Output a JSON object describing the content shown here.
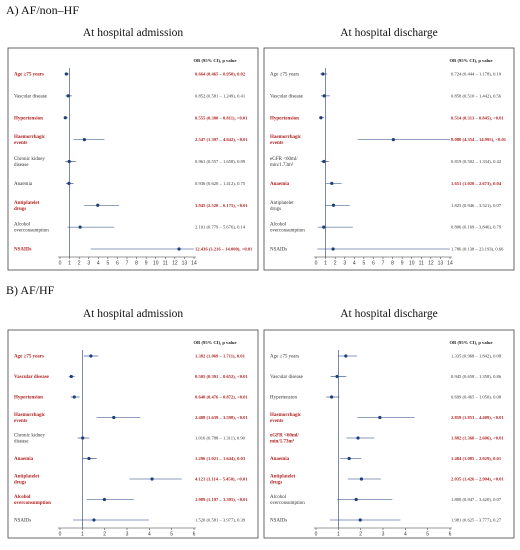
{
  "sections": [
    {
      "title": "A) AF/non–HF",
      "panels": [
        {
          "title": "At hospital admission",
          "header": "OR (95% CI), p value",
          "xticks": [
            "0",
            "1",
            "2",
            "3",
            "4",
            "5",
            "6",
            "7",
            "8",
            "9",
            "10",
            "11",
            "12",
            "13",
            "14"
          ],
          "xlim": [
            0,
            14
          ],
          "rows": [
            {
              "label": [
                "Age ≥75 years"
              ],
              "or_text": "0.664 (0.465 – 0.950), 0.02",
              "or": 0.664,
              "lo": 0.465,
              "hi": 0.95,
              "sig": true
            },
            {
              "label": [
                "Vascular disease"
              ],
              "or_text": "0.852 (0.581 – 1.249), 0.41",
              "or": 0.852,
              "lo": 0.581,
              "hi": 1.249,
              "sig": false
            },
            {
              "label": [
                "Hypertension"
              ],
              "or_text": "0.555 (0.380 – 0.811), <0.01",
              "or": 0.555,
              "lo": 0.38,
              "hi": 0.811,
              "sig": true
            },
            {
              "label": [
                "Haemorrhagic",
                "events"
              ],
              "or_text": "2.547 (1.397 – 4.642), <0.01",
              "or": 2.547,
              "lo": 1.397,
              "hi": 4.642,
              "sig": true
            },
            {
              "label": [
                "Chronic kidney",
                "disease"
              ],
              "or_text": "0.961 (0.557 – 1.658), 0.89",
              "or": 0.961,
              "lo": 0.557,
              "hi": 1.658,
              "sig": false
            },
            {
              "label": [
                "Anaemia"
              ],
              "or_text": "0.936 (0.620 – 1.412), 0.75",
              "or": 0.936,
              "lo": 0.62,
              "hi": 1.412,
              "sig": false
            },
            {
              "label": [
                "Antiplatelet",
                "drugs"
              ],
              "or_text": "3.945 (2.520 – 6.175), <0.01",
              "or": 3.945,
              "lo": 2.52,
              "hi": 6.175,
              "sig": true
            },
            {
              "label": [
                "Alcohol",
                "overconsumption"
              ],
              "or_text": "2.101 (0.779 – 5.676), 0.14",
              "or": 2.101,
              "lo": 0.779,
              "hi": 5.676,
              "sig": false
            },
            {
              "label": [
                "NSAIDs"
              ],
              "or_text": "12.436 (3.216 – 14.000), <0.01",
              "or": 12.436,
              "lo": 3.216,
              "hi": 14.0,
              "sig": true
            }
          ]
        },
        {
          "title": "At hospital discharge",
          "header": "OR (95% CI), p value",
          "xticks": [
            "0",
            "1",
            "2",
            "3",
            "4",
            "5",
            "6",
            "7",
            "8",
            "9",
            "10",
            "11",
            "12",
            "13",
            "14"
          ],
          "xlim": [
            0,
            14
          ],
          "rows": [
            {
              "label": [
                "Age ≥75 years"
              ],
              "or_text": "0.724 (0.444 – 1.178), 0.19",
              "or": 0.724,
              "lo": 0.444,
              "hi": 1.178,
              "sig": false
            },
            {
              "label": [
                "Vascular disease"
              ],
              "or_text": "0.858 (0.510 – 1.442), 0.56",
              "or": 0.858,
              "lo": 0.51,
              "hi": 1.442,
              "sig": false
            },
            {
              "label": [
                "Hypertension"
              ],
              "or_text": "0.514 (0.313 – 0.845), <0.01",
              "or": 0.514,
              "lo": 0.313,
              "hi": 0.845,
              "sig": true
            },
            {
              "label": [
                "Haemorrhagic",
                "events"
              ],
              "or_text": "8.080 (4.354 – 14.995), <0.01",
              "or": 8.08,
              "lo": 4.354,
              "hi": 14.0,
              "sig": true
            },
            {
              "label": [
                "eGFR <60ml/",
                "min/1.73m²"
              ],
              "or_text": "0.819 (0.502 – 1.334), 0.42",
              "or": 0.819,
              "lo": 0.502,
              "hi": 1.334,
              "sig": false
            },
            {
              "label": [
                "Anaemia"
              ],
              "or_text": "1.651 (1.020 – 2.673), 0.04",
              "or": 1.651,
              "lo": 1.02,
              "hi": 2.673,
              "sig": true
            },
            {
              "label": [
                "Antiplatelet",
                "drugs"
              ],
              "or_text": "1.825 (0.946 – 3.521), 0.07",
              "or": 1.825,
              "lo": 0.946,
              "hi": 3.521,
              "sig": false
            },
            {
              "label": [
                "Alcohol",
                "overconsumption"
              ],
              "or_text": "0.806 (0.169 – 3.846), 0.79",
              "or": 0.806,
              "lo": 0.169,
              "hi": 3.846,
              "sig": false
            },
            {
              "label": [
                "NSAIDs"
              ],
              "or_text": "1.786 (0.138 – 23.193), 0.66",
              "or": 1.786,
              "lo": 0.138,
              "hi": 14.0,
              "sig": false
            }
          ]
        }
      ]
    },
    {
      "title": "B) AF/HF",
      "panels": [
        {
          "title": "At hospital admission",
          "header": "OR (95% CI), p value",
          "xticks": [
            "0",
            "1",
            "2",
            "3",
            "4",
            "5",
            "6"
          ],
          "xlim": [
            0,
            6
          ],
          "rows": [
            {
              "label": [
                "Age ≥75 years"
              ],
              "or_text": "1.382 (1.069 – 1.711), 0.01",
              "or": 1.382,
              "lo": 1.069,
              "hi": 1.711,
              "sig": true
            },
            {
              "label": [
                "Vascular disease"
              ],
              "or_text": "0.505 (0.391 – 0.652), <0.01",
              "or": 0.505,
              "lo": 0.391,
              "hi": 0.652,
              "sig": true
            },
            {
              "label": [
                "Hypertension"
              ],
              "or_text": "0.640 (0.476 – 0.872), <0.01",
              "or": 0.64,
              "lo": 0.476,
              "hi": 0.872,
              "sig": true
            },
            {
              "label": [
                "Haemorrhagic",
                "events"
              ],
              "or_text": "2.408 (1.639 – 3.598), <0.01",
              "or": 2.408,
              "lo": 1.639,
              "hi": 3.598,
              "sig": true
            },
            {
              "label": [
                "Chronic kidney",
                "disease"
              ],
              "or_text": "1.016 (0.788 – 1.311), 0.90",
              "or": 1.016,
              "lo": 0.788,
              "hi": 1.311,
              "sig": false
            },
            {
              "label": [
                "Anaemia"
              ],
              "or_text": "1.296 (1.021 – 1.644), 0.03",
              "or": 1.296,
              "lo": 1.021,
              "hi": 1.644,
              "sig": true
            },
            {
              "label": [
                "Antiplatelet",
                "drugs"
              ],
              "or_text": "4.121 (3.114 – 5.450), <0.01",
              "or": 4.121,
              "lo": 3.114,
              "hi": 5.45,
              "sig": true
            },
            {
              "label": [
                "Alcohol",
                "overconsumption"
              ],
              "or_text": "1.989 (1.197 – 3.305), <0.01",
              "or": 1.989,
              "lo": 1.197,
              "hi": 3.305,
              "sig": true
            },
            {
              "label": [
                "NSAIDs"
              ],
              "or_text": "1.520 (0.581 – 3.977), 0.39",
              "or": 1.52,
              "lo": 0.581,
              "hi": 3.977,
              "sig": false
            }
          ]
        },
        {
          "title": "At hospital discharge",
          "header": "OR (95% CI), p value",
          "xticks": [
            "0",
            "1",
            "2",
            "3",
            "4",
            "5",
            "6"
          ],
          "xlim": [
            0,
            6
          ],
          "rows": [
            {
              "label": [
                "Age ≥75 years"
              ],
              "or_text": "1.335 (0.968 – 1.842), 0.08",
              "or": 1.335,
              "lo": 0.968,
              "hi": 1.842,
              "sig": false
            },
            {
              "label": [
                "Vascular disease"
              ],
              "or_text": "0.945 (0.658 – 1.358), 0.86",
              "or": 0.945,
              "lo": 0.658,
              "hi": 1.358,
              "sig": false
            },
            {
              "label": [
                "Hypertension"
              ],
              "or_text": "0.699 (0.465 – 1.050), 0.08",
              "or": 0.699,
              "lo": 0.465,
              "hi": 1.05,
              "sig": false
            },
            {
              "label": [
                "Haemorrhagic",
                "events"
              ],
              "or_text": "2.859 (1.853 – 4.409), <0.01",
              "or": 2.859,
              "lo": 1.853,
              "hi": 4.409,
              "sig": true
            },
            {
              "label": [
                "eGFR <60ml/",
                "min/1.73m²"
              ],
              "or_text": "1.882 (1.360 – 2.606), <0.01",
              "or": 1.882,
              "lo": 1.36,
              "hi": 2.606,
              "sig": true
            },
            {
              "label": [
                "Anaemia"
              ],
              "or_text": "1.484 (1.085 – 2.029), 0.01",
              "or": 1.484,
              "lo": 1.085,
              "hi": 2.029,
              "sig": true
            },
            {
              "label": [
                "Antiplatelet",
                "drugs"
              ],
              "or_text": "2.035 (1.426 – 2.904), <0.01",
              "or": 2.035,
              "lo": 1.426,
              "hi": 2.904,
              "sig": true
            },
            {
              "label": [
                "Alcohol",
                "overconsumption"
              ],
              "or_text": "1.800 (0.947 – 3.420), 0.07",
              "or": 1.8,
              "lo": 0.947,
              "hi": 3.42,
              "sig": false
            },
            {
              "label": [
                "NSAIDs"
              ],
              "or_text": "1.981 (0.625 – 3.777), 0.27",
              "or": 1.981,
              "lo": 0.625,
              "hi": 3.777,
              "sig": false
            }
          ]
        }
      ]
    }
  ],
  "colors": {
    "point": "#1f3f7a",
    "line": "#1f3f7a",
    "sig_text": "#b22222",
    "ref_line": "#1f3f7a"
  },
  "chart_data": {
    "type": "forest",
    "note_marker": "OR with 95% CI whiskers per covariate, four panels"
  }
}
